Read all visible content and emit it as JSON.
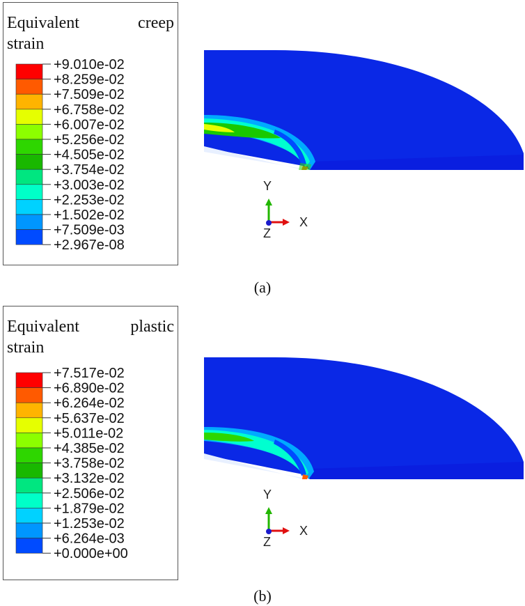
{
  "panels": [
    {
      "id": "a",
      "legend": {
        "title_word1": "Equivalent",
        "title_word2": "creep",
        "title_line2": "strain",
        "levels": [
          "+9.010e-02",
          "+8.259e-02",
          "+7.509e-02",
          "+6.758e-02",
          "+6.007e-02",
          "+5.256e-02",
          "+4.505e-02",
          "+3.754e-02",
          "+3.003e-02",
          "+2.253e-02",
          "+1.502e-02",
          "+7.509e-03",
          "+2.967e-08"
        ]
      },
      "caption": "(a)"
    },
    {
      "id": "b",
      "legend": {
        "title_word1": "Equivalent",
        "title_word2": "plastic",
        "title_line2": "strain",
        "levels": [
          "+7.517e-02",
          "+6.890e-02",
          "+6.264e-02",
          "+5.637e-02",
          "+5.011e-02",
          "+4.385e-02",
          "+3.758e-02",
          "+3.132e-02",
          "+2.506e-02",
          "+1.879e-02",
          "+1.253e-02",
          "+6.264e-03",
          "+0.000e+00"
        ]
      },
      "caption": "(b)"
    }
  ],
  "colors": [
    "#ff0000",
    "#ff5a00",
    "#ffb400",
    "#e6ff00",
    "#8cff00",
    "#2ed600",
    "#19b800",
    "#00e680",
    "#00ffc8",
    "#00d2ff",
    "#0096ff",
    "#004bff",
    "#0000ff"
  ],
  "triad": {
    "y": "Y",
    "x": "X",
    "z": "Z"
  }
}
